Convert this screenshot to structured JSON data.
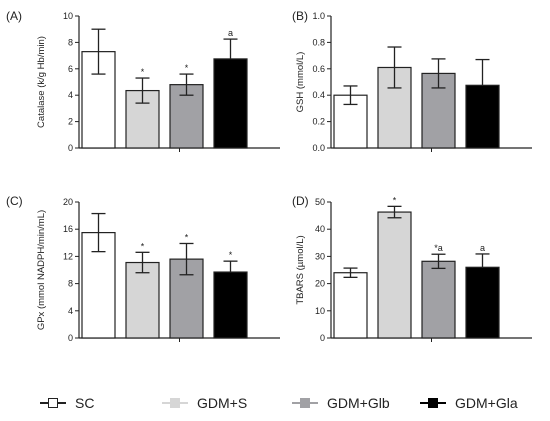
{
  "groups": [
    "SC",
    "GDM+S",
    "GDM+Glb",
    "GDM+Gla"
  ],
  "colors": {
    "SC": "#ffffff",
    "GDM+S": "#d6d6d6",
    "GDM+Glb": "#a1a1a5",
    "GDM+Gla": "#000000"
  },
  "legend": [
    "SC",
    "GDM+S",
    "GDM+Glb",
    "GDM+Gla"
  ],
  "chart_data": [
    {
      "panel": "(A)",
      "type": "bar",
      "ylabel": "Catalase (k/g Hb/min)",
      "ylim": [
        0,
        10
      ],
      "yticks": [
        "0",
        "2",
        "4",
        "6",
        "8",
        "10"
      ],
      "categories": [
        "SC",
        "GDM+S",
        "GDM+Glb",
        "GDM+Gla"
      ],
      "values": [
        7.3,
        4.35,
        4.8,
        6.75
      ],
      "errors": [
        1.7,
        0.95,
        0.8,
        1.5
      ],
      "annotations": [
        "",
        "*",
        "*",
        "a"
      ]
    },
    {
      "panel": "(B)",
      "type": "bar",
      "ylabel": "GSH (mmol/L)",
      "ylim": [
        0,
        1.0
      ],
      "yticks": [
        "0.0",
        "0.2",
        "0.4",
        "0.6",
        "0.8",
        "1.0"
      ],
      "categories": [
        "SC",
        "GDM+S",
        "GDM+Glb",
        "GDM+Gla"
      ],
      "values": [
        0.4,
        0.61,
        0.565,
        0.475
      ],
      "errors": [
        0.07,
        0.155,
        0.11,
        0.195
      ],
      "annotations": [
        "",
        "",
        "",
        ""
      ]
    },
    {
      "panel": "(C)",
      "type": "bar",
      "ylabel": "GPx (mmol NADPH/min/mL)",
      "ylim": [
        0,
        20
      ],
      "yticks": [
        "0",
        "4",
        "8",
        "12",
        "16",
        "20"
      ],
      "categories": [
        "SC",
        "GDM+S",
        "GDM+Glb",
        "GDM+Gla"
      ],
      "values": [
        15.5,
        11.1,
        11.6,
        9.7
      ],
      "errors": [
        2.8,
        1.5,
        2.3,
        1.6
      ],
      "annotations": [
        "",
        "*",
        "*",
        "*"
      ]
    },
    {
      "panel": "(D)",
      "type": "bar",
      "ylabel": "TBARS (µmol/L)",
      "ylim": [
        0,
        50
      ],
      "yticks": [
        "0",
        "10",
        "20",
        "30",
        "40",
        "50"
      ],
      "categories": [
        "SC",
        "GDM+S",
        "GDM+Glb",
        "GDM+Gla"
      ],
      "values": [
        24,
        46.3,
        28.2,
        26
      ],
      "errors": [
        1.7,
        2.1,
        2.6,
        4.9
      ],
      "annotations": [
        "",
        "*",
        "*a",
        "a"
      ]
    }
  ]
}
